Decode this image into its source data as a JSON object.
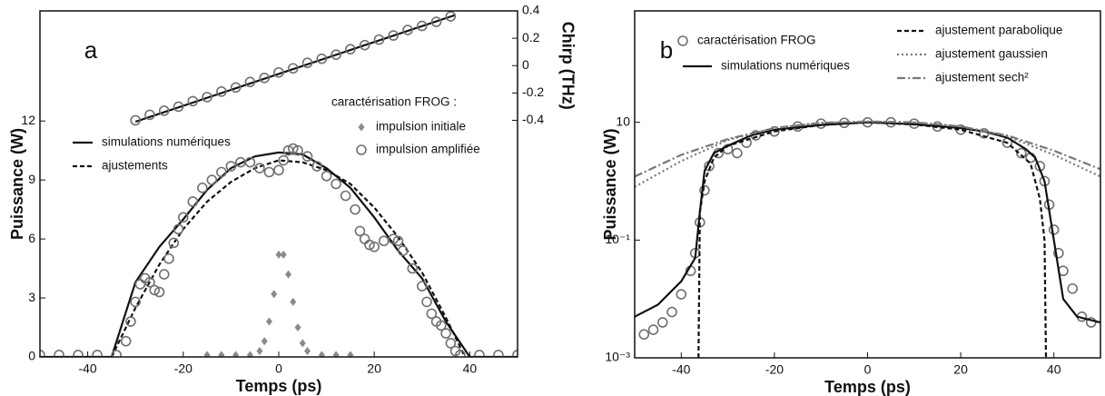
{
  "chart_data": [
    {
      "type": "line",
      "label": "a",
      "xlabel": "Temps (ps)",
      "ylabel": "Puissance (W)",
      "y2label": "Chirp (THz)",
      "xlim": [
        -50,
        50
      ],
      "xticks": [
        -40,
        -20,
        0,
        20,
        40
      ],
      "ylim": [
        0,
        17.6
      ],
      "yticks": [
        0,
        3,
        6,
        9,
        12
      ],
      "y2lim": [
        -2.13,
        0.4
      ],
      "y2ticks": [
        -0.4,
        -0.2,
        0,
        0.2,
        0.4
      ],
      "legend_title": "caractérisation FROG :",
      "series": [
        {
          "name": "simulations numériques",
          "color": "#111111",
          "style": "solid",
          "x": [
            -50,
            -35,
            -30,
            -25,
            -20,
            -15,
            -10,
            -5,
            0,
            5,
            10,
            15,
            20,
            25,
            30,
            35,
            40,
            50
          ],
          "values": [
            0,
            0,
            3.8,
            5.6,
            7.0,
            8.5,
            9.6,
            10.2,
            10.4,
            10.3,
            9.6,
            8.6,
            7.1,
            5.4,
            4.0,
            1.8,
            0,
            0
          ]
        },
        {
          "name": "ajustements",
          "color": "#111111",
          "style": "dashed",
          "x": [
            -35,
            -30,
            -25,
            -20,
            -15,
            -10,
            -5,
            0,
            5,
            10,
            15,
            20,
            25,
            30,
            35,
            38,
            39
          ],
          "values": [
            0,
            2.5,
            4.7,
            6.5,
            7.9,
            8.9,
            9.6,
            10.0,
            9.9,
            9.5,
            8.8,
            7.6,
            6.1,
            4.3,
            2.0,
            0.5,
            0
          ]
        },
        {
          "name": "impulsion initiale",
          "color": "#8a8a8a",
          "marker": "diamond",
          "x": [
            -15,
            -12,
            -9,
            -6,
            -4,
            -3,
            -2,
            -1,
            0,
            1,
            2,
            3,
            4,
            5,
            6,
            9,
            12,
            15
          ],
          "values": [
            0.1,
            0.1,
            0.1,
            0.1,
            0.3,
            0.8,
            1.8,
            3.2,
            5.2,
            5.2,
            4.2,
            2.8,
            1.5,
            0.7,
            0.3,
            0.1,
            0.1,
            0.1
          ]
        },
        {
          "name": "impulsion amplifiée",
          "color": "#707070",
          "marker": "circle",
          "x": [
            -50,
            -46,
            -42,
            -38,
            -34,
            -32,
            -31,
            -30,
            -29,
            -28,
            -27,
            -26,
            -25,
            -24,
            -23,
            -22,
            -21,
            -20,
            -18,
            -16,
            -14,
            -12,
            -10,
            -8,
            -6,
            -4,
            -2,
            0,
            1,
            2,
            3,
            4,
            6,
            8,
            10,
            12,
            14,
            16,
            17,
            18,
            19,
            20,
            22,
            24,
            25,
            26,
            28,
            30,
            31,
            32,
            33,
            34,
            35,
            36,
            37,
            38,
            42,
            46,
            50
          ],
          "values": [
            0.1,
            0.1,
            0.1,
            0.1,
            0.1,
            0.8,
            1.8,
            2.8,
            3.7,
            4.0,
            3.8,
            3.4,
            3.3,
            4.2,
            5.0,
            5.8,
            6.5,
            7.1,
            7.9,
            8.6,
            9.0,
            9.4,
            9.7,
            9.9,
            9.9,
            9.6,
            9.4,
            9.5,
            10.0,
            10.5,
            10.6,
            10.5,
            10.2,
            9.7,
            9.2,
            8.8,
            8.2,
            7.5,
            6.4,
            6.0,
            5.7,
            5.6,
            5.9,
            6.0,
            5.9,
            5.4,
            4.5,
            3.6,
            2.8,
            2.2,
            1.8,
            1.6,
            1.2,
            0.7,
            0.3,
            0.1,
            0.1,
            0.1,
            0.1
          ]
        },
        {
          "color": "#111111",
          "style": "solid",
          "axis": "y2",
          "x": [
            -30,
            37
          ],
          "values": [
            -0.41,
            0.37
          ]
        },
        {
          "color": "#707070",
          "marker": "circle",
          "axis": "y2",
          "x": [
            -30,
            -27,
            -24,
            -21,
            -18,
            -15,
            -12,
            -9,
            -6,
            -3,
            0,
            3,
            6,
            9,
            12,
            15,
            18,
            21,
            24,
            27,
            30,
            33,
            36
          ],
          "values": [
            -0.4,
            -0.36,
            -0.33,
            -0.3,
            -0.26,
            -0.23,
            -0.19,
            -0.16,
            -0.12,
            -0.09,
            -0.05,
            -0.02,
            0.02,
            0.05,
            0.08,
            0.12,
            0.15,
            0.19,
            0.22,
            0.26,
            0.29,
            0.32,
            0.36
          ]
        }
      ]
    },
    {
      "type": "line",
      "label": "b",
      "xlabel": "Temps (ps)",
      "ylabel": "Puissance (W)",
      "yscale": "log",
      "xlim": [
        -50,
        50
      ],
      "xticks": [
        -40,
        -20,
        0,
        20,
        40
      ],
      "ylim": [
        0.001,
        780
      ],
      "yticks": [
        {
          "value": 0.001,
          "label": "10⁻³"
        },
        {
          "value": 0.1,
          "label": "10⁻¹"
        },
        10
      ],
      "series": [
        {
          "name": "caractérisation FROG",
          "color": "#707070",
          "marker": "circle",
          "x": [
            -48,
            -46,
            -44,
            -42,
            -40,
            -38,
            -37,
            -36,
            -35,
            -34,
            -32,
            -30,
            -28,
            -26,
            -24,
            -20,
            -15,
            -10,
            -5,
            0,
            5,
            10,
            15,
            20,
            25,
            30,
            33,
            35,
            37,
            38,
            39,
            40,
            41,
            42,
            44,
            46,
            48
          ],
          "values": [
            0.0025,
            0.003,
            0.004,
            0.006,
            0.012,
            0.03,
            0.06,
            0.2,
            0.7,
            1.8,
            3,
            3.5,
            3,
            4.5,
            6,
            7,
            8.5,
            9.5,
            9.8,
            10,
            10,
            9.5,
            8.5,
            7.5,
            6.5,
            4.5,
            3,
            2.5,
            1.8,
            1,
            0.4,
            0.15,
            0.06,
            0.03,
            0.015,
            0.005,
            0.004
          ]
        },
        {
          "name": "simulations numériques",
          "color": "#111111",
          "style": "solid",
          "x": [
            -50,
            -45,
            -40,
            -37,
            -36,
            -35,
            -33,
            -30,
            -25,
            -20,
            -10,
            0,
            10,
            20,
            25,
            30,
            34,
            36,
            38,
            40,
            42,
            45,
            50
          ],
          "values": [
            0.005,
            0.008,
            0.02,
            0.05,
            0.3,
            1.5,
            3,
            4,
            6,
            7.5,
            9,
            10,
            9.3,
            8,
            7,
            5.5,
            3.5,
            2.5,
            1,
            0.1,
            0.01,
            0.005,
            0.004
          ]
        },
        {
          "name": "ajustement parabolique",
          "color": "#111111",
          "style": "dashed",
          "x": [
            -36.3,
            -36,
            -35,
            -33,
            -30,
            -20,
            -10,
            0,
            10,
            20,
            30,
            35,
            37,
            38,
            38.3
          ],
          "values": [
            0.001,
            0.3,
            1,
            2.5,
            4,
            7,
            9,
            10,
            9.2,
            7.5,
            4.5,
            2,
            0.5,
            0.1,
            0.001
          ]
        },
        {
          "name": "ajustement gaussien",
          "color": "#777777",
          "style": "dotted",
          "x": [
            -50,
            -40,
            -30,
            -20,
            -10,
            0,
            10,
            20,
            30,
            40,
            50
          ],
          "values": [
            0.8,
            2.2,
            5,
            8,
            9.8,
            10.3,
            10,
            8.5,
            5.8,
            2.8,
            1.2
          ]
        },
        {
          "name": "ajustement sech²",
          "color": "#777777",
          "style": "dashdot",
          "x": [
            -50,
            -40,
            -30,
            -20,
            -10,
            0,
            10,
            20,
            30,
            40,
            50
          ],
          "values": [
            1.2,
            2.8,
            5.2,
            8,
            9.8,
            10.3,
            10,
            8.5,
            6,
            3.3,
            1.6
          ]
        }
      ]
    }
  ]
}
